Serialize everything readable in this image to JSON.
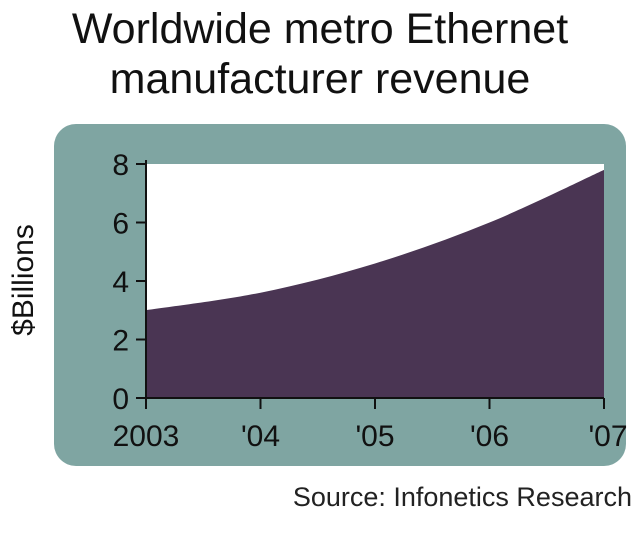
{
  "title_line1": "Worldwide metro Ethernet",
  "title_line2": "manufacturer revenue",
  "source": "Source: Infonetics Research",
  "colors": {
    "panel": "#7fa5a2",
    "area": "#4a3553",
    "plot_bg": "#ffffff",
    "text": "#111111"
  },
  "chart_data": {
    "type": "area",
    "title": "Worldwide metro Ethernet manufacturer revenue",
    "xlabel": "",
    "ylabel": "$Billions",
    "categories": [
      "2003",
      "'04",
      "'05",
      "'06",
      "'07"
    ],
    "values": [
      3.0,
      3.6,
      4.6,
      6.0,
      7.8
    ],
    "ylim": [
      0,
      8
    ],
    "yticks": [
      0,
      2,
      4,
      6,
      8
    ],
    "grid": false,
    "source": "Source: Infonetics Research"
  }
}
